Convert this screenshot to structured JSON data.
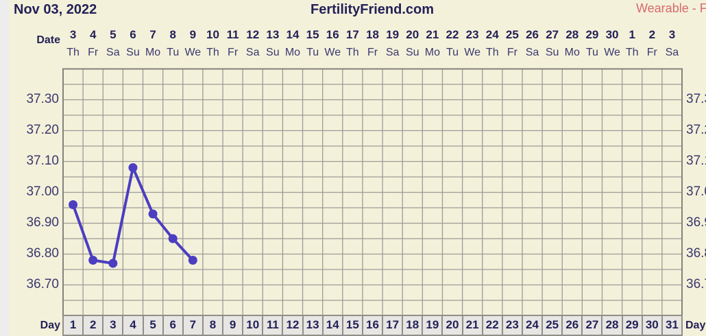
{
  "header": {
    "date_label": "Nov 03, 2022",
    "site_title": "FertilityFriend.com",
    "mode_label": "Wearable - F"
  },
  "axis": {
    "date_row_label": "Date",
    "day_row_label": "Day",
    "day_row_label_right": "Day"
  },
  "colors": {
    "bg": "#f4f1da",
    "strip": "#eeedee",
    "gridline": "#9b9b97",
    "gridborder": "#83837d",
    "line": "#4b3ec0",
    "textdark": "#232158",
    "textmed": "#3a386f",
    "pink": "#d7696e",
    "cellbg": "#e8e6e3",
    "cellborder": "#8f8e88"
  },
  "chart_data": {
    "type": "line",
    "title": "FertilityFriend.com",
    "start_date": "Nov 03, 2022",
    "x_cycle_days": [
      1,
      2,
      3,
      4,
      5,
      6,
      7,
      8,
      9,
      10,
      11,
      12,
      13,
      14,
      15,
      16,
      17,
      18,
      19,
      20,
      21,
      22,
      23,
      24,
      25,
      26,
      27,
      28,
      29,
      30,
      31
    ],
    "x_dates": [
      "3",
      "4",
      "5",
      "6",
      "7",
      "8",
      "9",
      "10",
      "11",
      "12",
      "13",
      "14",
      "15",
      "16",
      "17",
      "18",
      "19",
      "20",
      "21",
      "22",
      "23",
      "24",
      "25",
      "26",
      "27",
      "28",
      "29",
      "30",
      "1",
      "2",
      "3"
    ],
    "x_weekdays": [
      "Th",
      "Fr",
      "Sa",
      "Su",
      "Mo",
      "Tu",
      "We",
      "Th",
      "Fr",
      "Sa",
      "Su",
      "Mo",
      "Tu",
      "We",
      "Th",
      "Fr",
      "Sa",
      "Su",
      "Mo",
      "Tu",
      "We",
      "Th",
      "Fr",
      "Sa",
      "Su",
      "Mo",
      "Tu",
      "We",
      "Th",
      "Fr",
      "Sa"
    ],
    "ylim": [
      36.6,
      37.4
    ],
    "y_minor_step": 0.05,
    "y_ticks_labeled": [
      "37.30",
      "37.20",
      "37.10",
      "37.00",
      "36.90",
      "36.80",
      "36.70"
    ],
    "grid": true,
    "legend": "none",
    "series": [
      {
        "name": "bbt-temperature-celsius",
        "days": [
          1,
          2,
          3,
          4,
          5,
          6,
          7
        ],
        "values": [
          36.96,
          36.78,
          36.77,
          37.08,
          36.93,
          36.85,
          36.78
        ]
      }
    ]
  }
}
